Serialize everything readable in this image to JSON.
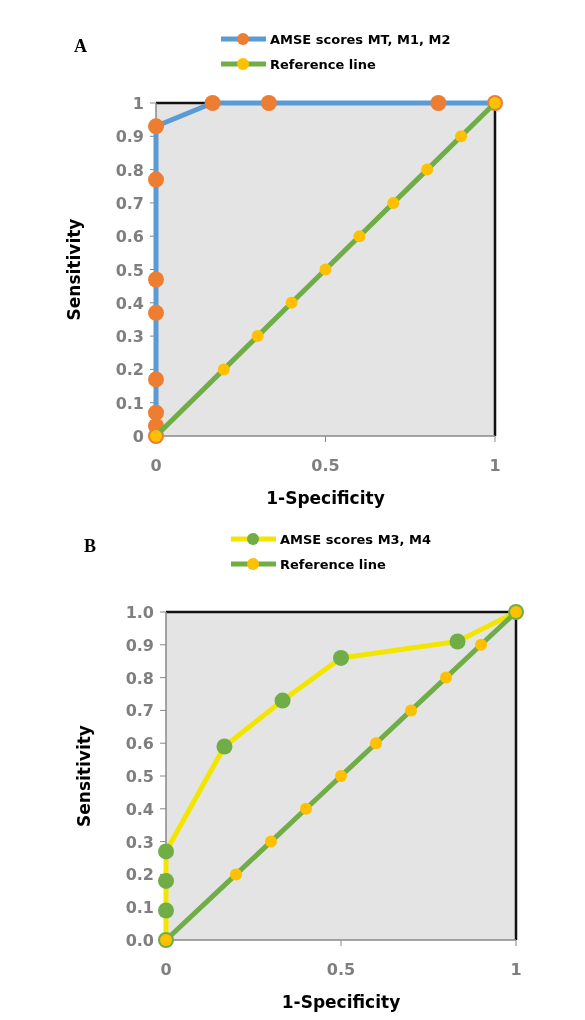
{
  "chart_data": [
    {
      "type": "line",
      "title": "A",
      "xlabel": "1-Specificity",
      "ylabel": "Sensitivity",
      "xlim": [
        0,
        1
      ],
      "ylim": [
        0,
        1
      ],
      "xticks": [
        0,
        0.5,
        1
      ],
      "yticks": [
        0,
        0.1,
        0.2,
        0.3,
        0.4,
        0.5,
        0.6,
        0.7,
        0.8,
        0.9,
        1
      ],
      "grid": false,
      "legend": "top",
      "marker": "circle",
      "line_style": "solid",
      "series": [
        {
          "name": "AMSE scores MT, M1, M2",
          "color": "#5b9bd5",
          "colors": [
            "#ed7d31",
            "#ed7d31",
            "#ed7d31",
            "#ed7d31",
            "#ed7d31",
            "#ed7d31",
            "#ed7d31",
            "#ed7d31",
            "#ed7d31",
            "#ed7d31",
            "#ed7d31",
            "#ed7d31"
          ],
          "x": [
            0,
            0,
            0,
            0,
            0,
            0,
            0,
            0,
            0.167,
            0.333,
            0.833,
            1
          ],
          "values": [
            0,
            0.03,
            0.07,
            0.17,
            0.37,
            0.47,
            0.77,
            0.93,
            1,
            1,
            1,
            1
          ]
        },
        {
          "name": "Reference line",
          "color": "#70ad47",
          "colors": [
            "#ffc000",
            "#ffc000",
            "#ffc000",
            "#ffc000",
            "#ffc000",
            "#ffc000",
            "#ffc000",
            "#ffc000",
            "#ffc000",
            "#ffc000"
          ],
          "x": [
            0,
            0.2,
            0.3,
            0.4,
            0.5,
            0.6,
            0.7,
            0.8,
            0.9,
            1
          ],
          "values": [
            0,
            0.2,
            0.3,
            0.4,
            0.5,
            0.6,
            0.7,
            0.8,
            0.9,
            1
          ]
        }
      ]
    },
    {
      "type": "line",
      "title": "B",
      "xlabel": "1-Specificity",
      "ylabel": "Sensitivity",
      "xlim": [
        0,
        1
      ],
      "ylim": [
        0,
        1
      ],
      "xticks": [
        0,
        0.5,
        1
      ],
      "yticks": [
        {
          "value": 0,
          "label": "0.0"
        },
        0.1,
        0.2,
        0.3,
        0.4,
        0.5,
        0.6,
        0.7,
        0.8,
        0.9,
        {
          "value": 1,
          "label": "1.0"
        }
      ],
      "grid": false,
      "legend": "top",
      "marker": "circle",
      "line_style": "solid",
      "series": [
        {
          "name": "AMSE scores M3, M4",
          "color": "#f2e600",
          "colors": [
            "#70ad47",
            "#70ad47",
            "#70ad47",
            "#70ad47",
            "#70ad47",
            "#70ad47",
            "#70ad47",
            "#70ad47",
            "#70ad47"
          ],
          "x": [
            0,
            0,
            0,
            0,
            0.167,
            0.333,
            0.5,
            0.833,
            1
          ],
          "values": [
            0,
            0.09,
            0.18,
            0.27,
            0.59,
            0.73,
            0.86,
            0.91,
            1
          ]
        },
        {
          "name": "Reference line",
          "color": "#70ad47",
          "colors": [
            "#ffc000",
            "#ffc000",
            "#ffc000",
            "#ffc000",
            "#ffc000",
            "#ffc000",
            "#ffc000",
            "#ffc000",
            "#ffc000",
            "#ffc000"
          ],
          "x": [
            0,
            0.2,
            0.3,
            0.4,
            0.5,
            0.6,
            0.7,
            0.8,
            0.9,
            1
          ],
          "values": [
            0,
            0.2,
            0.3,
            0.4,
            0.5,
            0.6,
            0.7,
            0.8,
            0.9,
            1
          ]
        }
      ]
    }
  ]
}
